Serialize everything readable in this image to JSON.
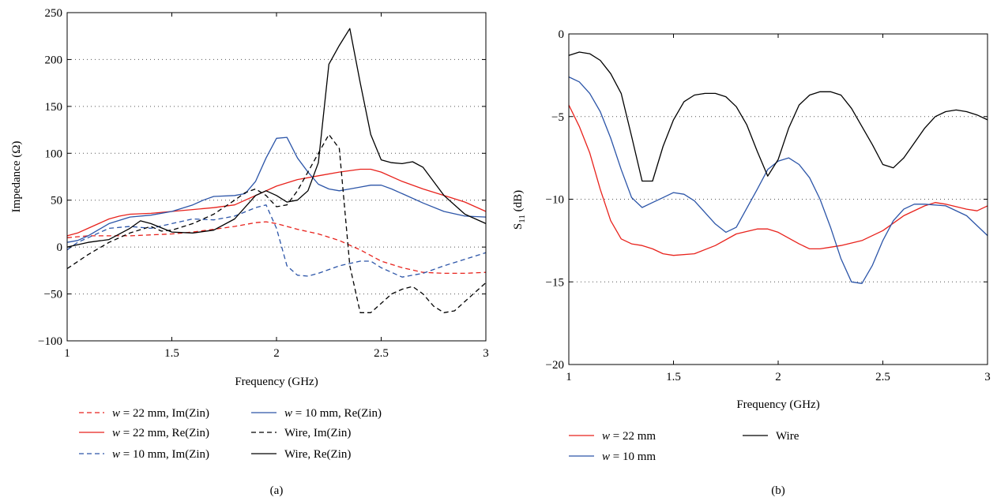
{
  "chart_data": [
    {
      "type": "line",
      "panel_label": "(a)",
      "xlabel": "Frequency (GHz)",
      "ylabel": "Impedance (Ω)",
      "xlim": [
        1,
        3
      ],
      "ylim": [
        -100,
        250
      ],
      "xticks": [
        1,
        1.5,
        2,
        2.5,
        3
      ],
      "xtick_labels": [
        "1",
        "1.5",
        "2",
        "2.5",
        "3"
      ],
      "yticks": [
        -100,
        -50,
        0,
        50,
        100,
        150,
        200,
        250
      ],
      "ytick_labels": [
        "−100",
        "−50",
        "0",
        "50",
        "100",
        "150",
        "200",
        "250"
      ],
      "grid": "horizontal dotted",
      "legend_position": "below",
      "series": [
        {
          "name": "w = 22 mm, Im(Zin)",
          "label_var": "w",
          "label_rest": " = 22 mm, Im(Zin)",
          "color": "#e8221c",
          "dash": "dashed",
          "x": [
            1,
            1.1,
            1.2,
            1.3,
            1.4,
            1.5,
            1.6,
            1.7,
            1.8,
            1.9,
            1.95,
            2.0,
            2.1,
            2.2,
            2.3,
            2.4,
            2.5,
            2.6,
            2.7,
            2.8,
            2.9,
            3.0
          ],
          "y": [
            10,
            12,
            12,
            12,
            13,
            14,
            16,
            19,
            22,
            26,
            27,
            25,
            19,
            14,
            7,
            -3,
            -15,
            -22,
            -27,
            -28,
            -28,
            -27
          ]
        },
        {
          "name": "w = 22 mm, Re(Zin)",
          "label_var": "w",
          "label_rest": " = 22 mm, Re(Zin)",
          "color": "#e8221c",
          "dash": "solid",
          "x": [
            1,
            1.05,
            1.1,
            1.2,
            1.25,
            1.3,
            1.4,
            1.5,
            1.6,
            1.7,
            1.8,
            1.9,
            2.0,
            2.1,
            2.2,
            2.3,
            2.4,
            2.45,
            2.5,
            2.6,
            2.7,
            2.8,
            2.9,
            3.0
          ],
          "y": [
            12,
            15,
            20,
            30,
            33,
            35,
            36,
            38,
            40,
            42,
            45,
            55,
            65,
            72,
            76,
            80,
            83,
            83,
            80,
            70,
            62,
            55,
            48,
            38
          ]
        },
        {
          "name": "w = 10 mm, Im(Zin)",
          "label_var": "w",
          "label_rest": " = 10 mm, Im(Zin)",
          "color": "#2c55a8",
          "dash": "dashed",
          "x": [
            1,
            1.05,
            1.1,
            1.2,
            1.3,
            1.4,
            1.5,
            1.6,
            1.7,
            1.8,
            1.9,
            1.95,
            2.0,
            2.05,
            2.1,
            2.15,
            2.2,
            2.3,
            2.4,
            2.45,
            2.5,
            2.6,
            2.7,
            2.8,
            2.9,
            3.0
          ],
          "y": [
            -3,
            5,
            10,
            20,
            22,
            20,
            25,
            30,
            29,
            33,
            42,
            45,
            20,
            -20,
            -30,
            -31,
            -28,
            -20,
            -15,
            -15,
            -22,
            -32,
            -28,
            -20,
            -13,
            -6
          ]
        },
        {
          "name": "w = 10 mm, Re(Zin)",
          "label_var": "w",
          "label_rest": " = 10 mm, Re(Zin)",
          "color": "#2c55a8",
          "dash": "solid",
          "x": [
            1,
            1.05,
            1.1,
            1.2,
            1.3,
            1.4,
            1.5,
            1.6,
            1.65,
            1.7,
            1.8,
            1.85,
            1.9,
            1.95,
            2.0,
            2.05,
            2.1,
            2.15,
            2.2,
            2.25,
            2.3,
            2.35,
            2.4,
            2.45,
            2.5,
            2.55,
            2.6,
            2.7,
            2.8,
            2.9,
            3.0
          ],
          "y": [
            5,
            7,
            12,
            25,
            32,
            34,
            38,
            45,
            50,
            54,
            55,
            57,
            70,
            95,
            116,
            117,
            95,
            80,
            67,
            62,
            60,
            62,
            64,
            66,
            66,
            62,
            57,
            47,
            38,
            33,
            32
          ]
        },
        {
          "name": "Wire, Im(Zin)",
          "label_var": "",
          "label_rest": "Wire, Im(Zin)",
          "color": "#000000",
          "dash": "dashed",
          "x": [
            1,
            1.1,
            1.2,
            1.3,
            1.4,
            1.45,
            1.5,
            1.6,
            1.7,
            1.8,
            1.85,
            1.9,
            1.95,
            2.0,
            2.05,
            2.1,
            2.2,
            2.25,
            2.3,
            2.35,
            2.4,
            2.45,
            2.5,
            2.55,
            2.6,
            2.65,
            2.7,
            2.75,
            2.8,
            2.85,
            2.9,
            3.0
          ],
          "y": [
            -23,
            -8,
            5,
            15,
            22,
            17,
            18,
            25,
            35,
            50,
            58,
            62,
            55,
            43,
            45,
            60,
            100,
            120,
            105,
            -20,
            -70,
            -70,
            -60,
            -50,
            -45,
            -42,
            -50,
            -63,
            -70,
            -68,
            -58,
            -38
          ]
        },
        {
          "name": "Wire, Re(Zin)",
          "label_var": "",
          "label_rest": "Wire, Re(Zin)",
          "color": "#000000",
          "dash": "solid",
          "x": [
            1,
            1.1,
            1.2,
            1.3,
            1.35,
            1.4,
            1.5,
            1.6,
            1.7,
            1.8,
            1.9,
            1.95,
            2.0,
            2.05,
            2.1,
            2.15,
            2.2,
            2.25,
            2.3,
            2.35,
            2.4,
            2.45,
            2.5,
            2.55,
            2.6,
            2.65,
            2.7,
            2.8,
            2.9,
            3.0
          ],
          "y": [
            0,
            5,
            8,
            20,
            28,
            25,
            16,
            15,
            18,
            30,
            55,
            60,
            55,
            48,
            50,
            60,
            90,
            195,
            215,
            233,
            175,
            120,
            93,
            90,
            89,
            91,
            85,
            55,
            35,
            25
          ]
        }
      ]
    },
    {
      "type": "line",
      "panel_label": "(b)",
      "xlabel": "Frequency (GHz)",
      "ylabel_main": "S",
      "ylabel_sub": "11",
      "ylabel_rest": " (dB)",
      "xlim": [
        1,
        3
      ],
      "ylim": [
        -20,
        0
      ],
      "xticks": [
        1,
        1.5,
        2,
        2.5,
        3
      ],
      "xtick_labels": [
        "1",
        "1.5",
        "2",
        "2.5",
        "3"
      ],
      "yticks": [
        -20,
        -15,
        -10,
        -5,
        0
      ],
      "ytick_labels": [
        "−20",
        "−15",
        "−10",
        "−5",
        "0"
      ],
      "grid": "horizontal dotted",
      "legend_position": "below",
      "series": [
        {
          "name": "w = 22 mm",
          "label_var": "w",
          "label_rest": " = 22 mm",
          "color": "#e8221c",
          "dash": "solid",
          "x": [
            1,
            1.05,
            1.1,
            1.15,
            1.2,
            1.25,
            1.3,
            1.35,
            1.4,
            1.45,
            1.5,
            1.6,
            1.7,
            1.8,
            1.9,
            1.95,
            2.0,
            2.1,
            2.15,
            2.2,
            2.25,
            2.3,
            2.4,
            2.5,
            2.6,
            2.7,
            2.75,
            2.8,
            2.9,
            2.95,
            3.0
          ],
          "y": [
            -4.3,
            -5.6,
            -7.2,
            -9.4,
            -11.3,
            -12.4,
            -12.7,
            -12.8,
            -13.0,
            -13.3,
            -13.4,
            -13.3,
            -12.8,
            -12.1,
            -11.8,
            -11.8,
            -12.0,
            -12.7,
            -13.0,
            -13.0,
            -12.9,
            -12.8,
            -12.5,
            -11.9,
            -11.0,
            -10.4,
            -10.2,
            -10.3,
            -10.6,
            -10.7,
            -10.4
          ]
        },
        {
          "name": "w = 10 mm",
          "label_var": "w",
          "label_rest": " = 10 mm",
          "color": "#2c55a8",
          "dash": "solid",
          "x": [
            1,
            1.05,
            1.1,
            1.15,
            1.2,
            1.25,
            1.3,
            1.35,
            1.4,
            1.45,
            1.5,
            1.55,
            1.6,
            1.65,
            1.7,
            1.75,
            1.8,
            1.9,
            1.95,
            2.0,
            2.05,
            2.1,
            2.15,
            2.2,
            2.25,
            2.3,
            2.35,
            2.4,
            2.45,
            2.5,
            2.55,
            2.6,
            2.65,
            2.7,
            2.8,
            2.9,
            3.0
          ],
          "y": [
            -2.6,
            -2.9,
            -3.6,
            -4.7,
            -6.3,
            -8.2,
            -9.9,
            -10.5,
            -10.2,
            -9.9,
            -9.6,
            -9.7,
            -10.1,
            -10.8,
            -11.5,
            -12.0,
            -11.7,
            -9.4,
            -8.2,
            -7.7,
            -7.5,
            -7.9,
            -8.7,
            -10.0,
            -11.7,
            -13.6,
            -15.0,
            -15.1,
            -14.0,
            -12.5,
            -11.3,
            -10.6,
            -10.3,
            -10.3,
            -10.4,
            -11.0,
            -12.2
          ]
        },
        {
          "name": "Wire",
          "label_var": "",
          "label_rest": "Wire",
          "color": "#000000",
          "dash": "solid",
          "x": [
            1,
            1.05,
            1.1,
            1.15,
            1.2,
            1.25,
            1.3,
            1.35,
            1.4,
            1.45,
            1.5,
            1.55,
            1.6,
            1.65,
            1.7,
            1.75,
            1.8,
            1.85,
            1.9,
            1.95,
            2.0,
            2.05,
            2.1,
            2.15,
            2.2,
            2.25,
            2.3,
            2.35,
            2.4,
            2.45,
            2.5,
            2.55,
            2.6,
            2.65,
            2.7,
            2.75,
            2.8,
            2.85,
            2.9,
            2.95,
            3.0
          ],
          "y": [
            -1.3,
            -1.1,
            -1.2,
            -1.6,
            -2.4,
            -3.6,
            -6.2,
            -8.9,
            -8.9,
            -6.8,
            -5.2,
            -4.1,
            -3.7,
            -3.6,
            -3.6,
            -3.8,
            -4.4,
            -5.5,
            -7.1,
            -8.6,
            -7.6,
            -5.7,
            -4.3,
            -3.7,
            -3.5,
            -3.5,
            -3.7,
            -4.5,
            -5.6,
            -6.7,
            -7.9,
            -8.1,
            -7.5,
            -6.6,
            -5.7,
            -5.0,
            -4.7,
            -4.6,
            -4.7,
            -4.9,
            -5.2
          ]
        }
      ]
    }
  ]
}
